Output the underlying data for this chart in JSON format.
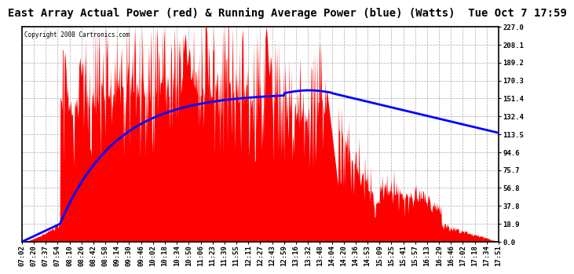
{
  "title": "East Array Actual Power (red) & Running Average Power (blue) (Watts)  Tue Oct 7 17:59",
  "copyright": "Copyright 2008 Cartronics.com",
  "yticks": [
    0.0,
    18.9,
    37.8,
    56.8,
    75.7,
    94.6,
    113.5,
    132.4,
    151.4,
    170.3,
    189.2,
    208.1,
    227.0
  ],
  "xtick_labels": [
    "07:02",
    "07:20",
    "07:37",
    "07:54",
    "08:10",
    "08:26",
    "08:42",
    "08:58",
    "09:14",
    "09:30",
    "09:46",
    "10:02",
    "10:18",
    "10:34",
    "10:50",
    "11:06",
    "11:23",
    "11:39",
    "11:55",
    "12:11",
    "12:27",
    "12:43",
    "12:59",
    "13:16",
    "13:32",
    "13:48",
    "14:04",
    "14:20",
    "14:36",
    "14:53",
    "15:09",
    "15:25",
    "15:41",
    "15:57",
    "16:13",
    "16:29",
    "16:46",
    "17:02",
    "17:18",
    "17:34",
    "17:51"
  ],
  "actual_color": "#ff0000",
  "average_color": "#0000ff",
  "background_color": "#ffffff",
  "grid_color": "#aaaaaa",
  "title_fontsize": 10,
  "axis_fontsize": 6.5,
  "ymin": 0.0,
  "ymax": 227.0
}
